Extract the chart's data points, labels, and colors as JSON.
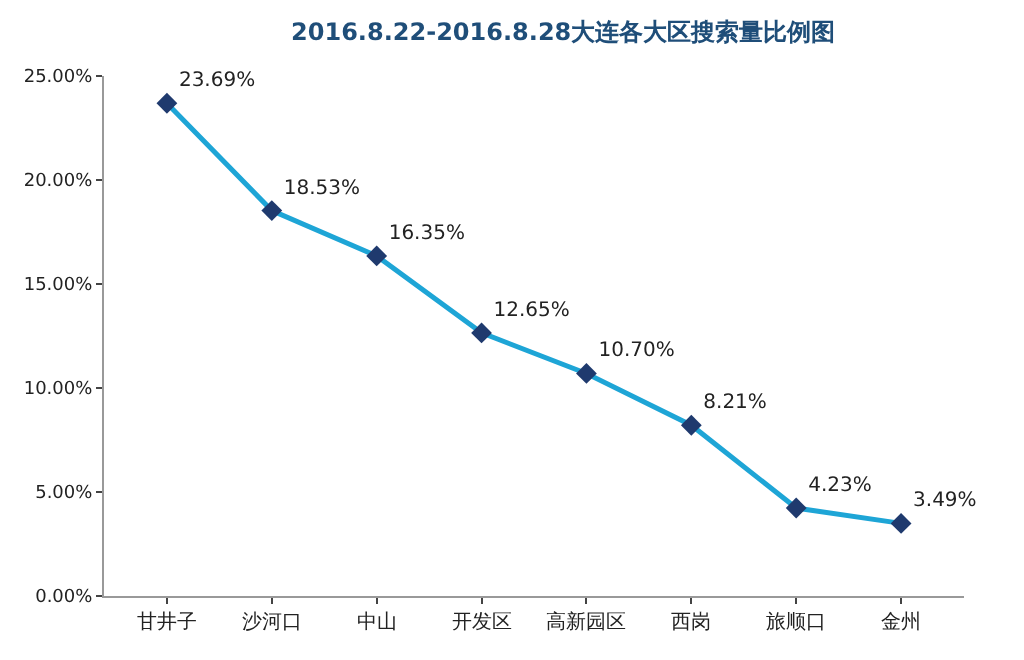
{
  "chart_data": {
    "type": "line",
    "title": "2016.8.22-2016.8.28大连各大区搜索量比例图",
    "categories": [
      "甘井子",
      "沙河口",
      "中山",
      "开发区",
      "高新园区",
      "西岗",
      "旅顺口",
      "金州"
    ],
    "series": [
      {
        "color": "#1ea5d6",
        "values": [
          23.69,
          18.53,
          16.35,
          12.65,
          10.7,
          8.21,
          4.23,
          3.49
        ],
        "value_labels": [
          "23.69%",
          "18.53%",
          "16.35%",
          "12.65%",
          "10.70%",
          "8.21%",
          "4.23%",
          "3.49%"
        ]
      }
    ],
    "ylim": [
      0,
      25
    ],
    "yticks": [
      {
        "value": 0,
        "label": "0.00%"
      },
      {
        "value": 5,
        "label": "5.00%"
      },
      {
        "value": 10,
        "label": "10.00%"
      },
      {
        "value": 15,
        "label": "15.00%"
      },
      {
        "value": 20,
        "label": "20.00%"
      },
      {
        "value": 25,
        "label": "25.00%"
      }
    ],
    "marker": "diamond",
    "line_style": "solid"
  }
}
